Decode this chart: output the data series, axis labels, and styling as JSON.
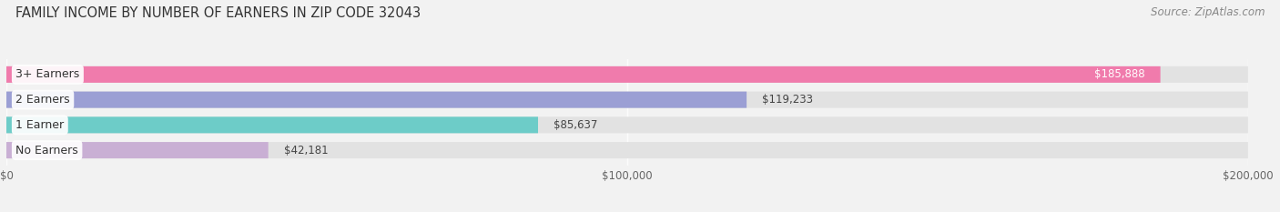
{
  "title": "FAMILY INCOME BY NUMBER OF EARNERS IN ZIP CODE 32043",
  "source": "Source: ZipAtlas.com",
  "categories": [
    "No Earners",
    "1 Earner",
    "2 Earners",
    "3+ Earners"
  ],
  "values": [
    42181,
    85637,
    119233,
    185888
  ],
  "bar_colors": [
    "#c9afd4",
    "#6dccc8",
    "#9b9fd4",
    "#f07bac"
  ],
  "value_labels": [
    "$42,181",
    "$85,637",
    "$119,233",
    "$185,888"
  ],
  "value_label_inside": [
    false,
    false,
    false,
    true
  ],
  "xlim": [
    0,
    200000
  ],
  "xticks": [
    0,
    100000,
    200000
  ],
  "xticklabels": [
    "$0",
    "$100,000",
    "$200,000"
  ],
  "background_color": "#f2f2f2",
  "bar_background_color": "#e2e2e2",
  "title_fontsize": 10.5,
  "source_fontsize": 8.5,
  "bar_height": 0.65,
  "rounding_size": 0.25
}
